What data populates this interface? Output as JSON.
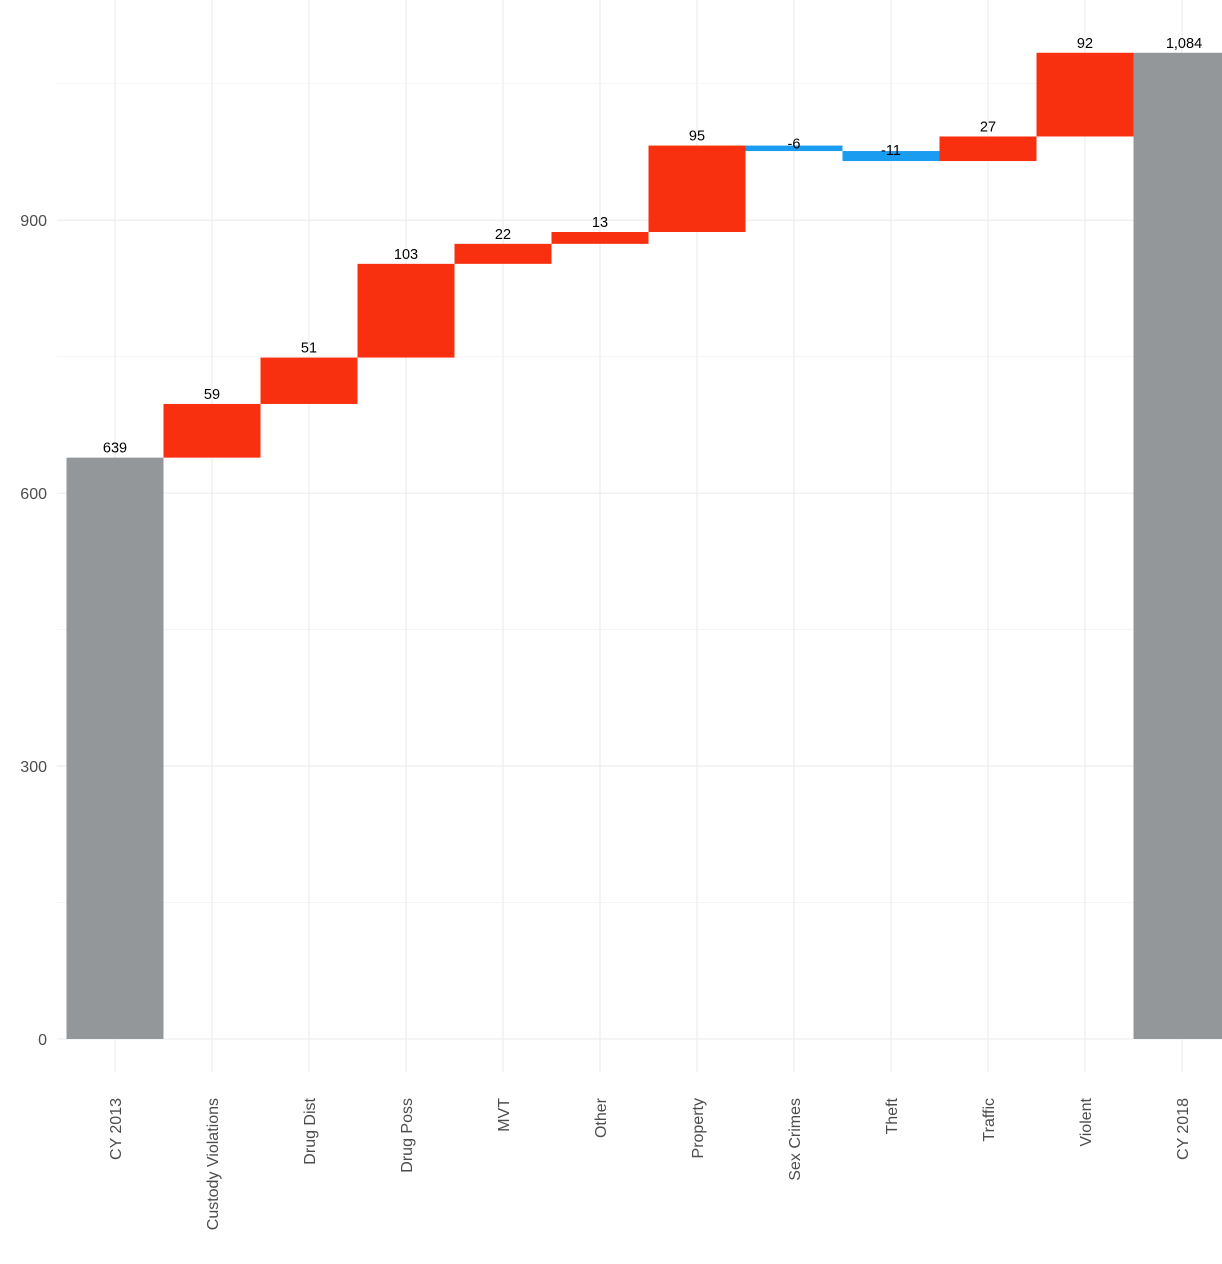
{
  "chart_data": {
    "type": "waterfall",
    "title": "",
    "xlabel": "",
    "ylabel": "",
    "categories": [
      "CY 2013",
      "Custody Violations",
      "Drug Dist",
      "Drug Poss",
      "MVT",
      "Other",
      "Property",
      "Sex Crimes",
      "Theft",
      "Traffic",
      "Violent",
      "CY 2018"
    ],
    "values": [
      639,
      59,
      51,
      103,
      22,
      13,
      95,
      -6,
      -11,
      27,
      92,
      1084
    ],
    "labels": [
      "639",
      "59",
      "51",
      "103",
      "22",
      "13",
      "95",
      "-6",
      "-11",
      "27",
      "92",
      "1,084"
    ],
    "kinds": [
      "total",
      "delta",
      "delta",
      "delta",
      "delta",
      "delta",
      "delta",
      "delta",
      "delta",
      "delta",
      "delta",
      "total"
    ],
    "ylim": [
      -30,
      1160
    ],
    "yticks": [
      0,
      300,
      600,
      900
    ],
    "grid": true,
    "legend": "none",
    "colors": {
      "total": "#939799",
      "increase": "#f9300f",
      "decrease": "#1a9cf0"
    }
  }
}
